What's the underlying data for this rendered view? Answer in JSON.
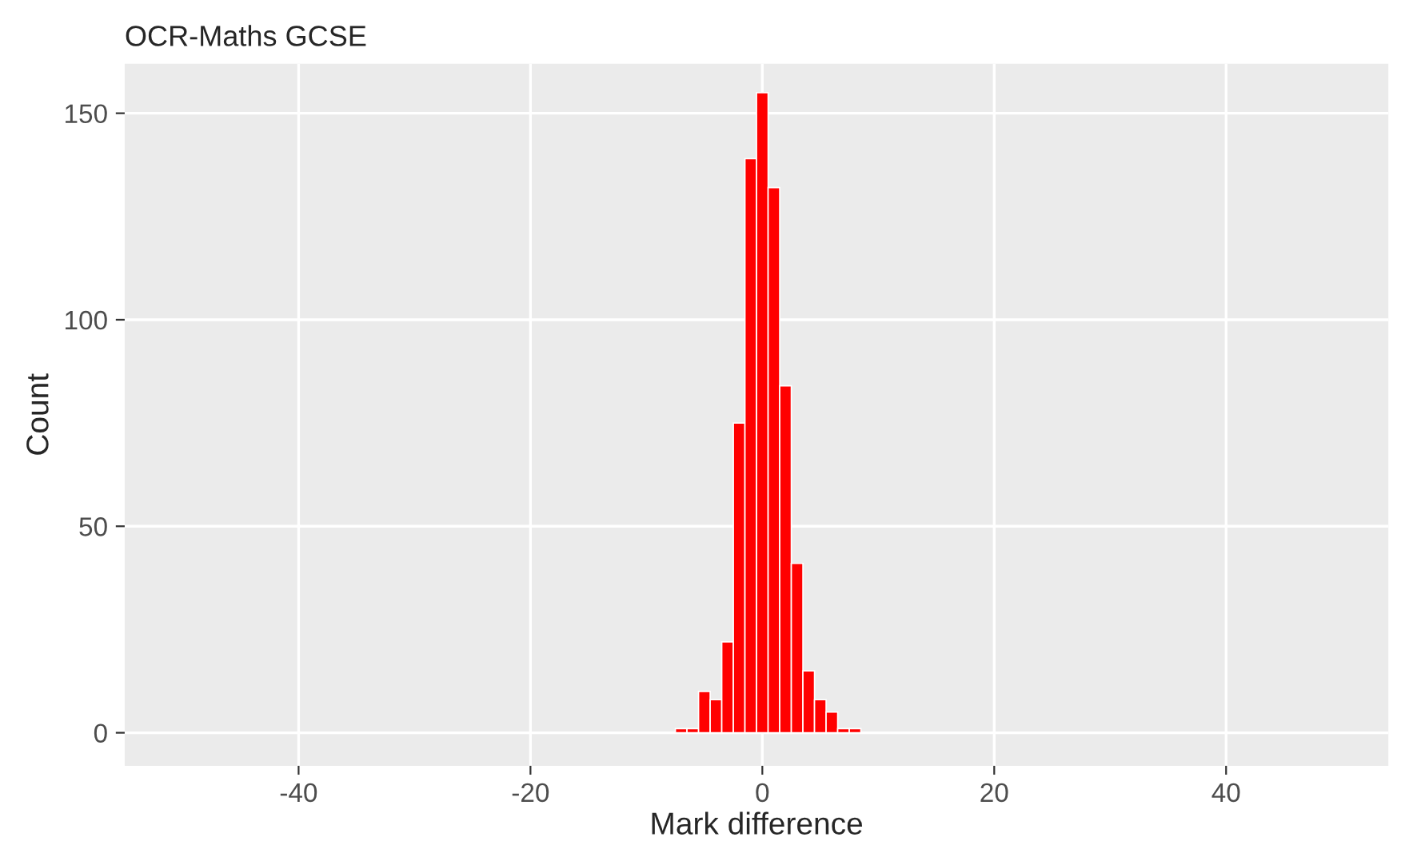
{
  "chart_data": {
    "type": "histogram",
    "title": "OCR-Maths GCSE",
    "xlabel": "Mark difference",
    "ylabel": "Count",
    "bins": [
      -7.5,
      -6.5,
      -5.5,
      -4.5,
      -3.5,
      -2.5,
      -1.5,
      -0.5,
      0.5,
      1.5,
      2.5,
      3.5,
      4.5,
      5.5,
      6.5,
      7.5,
      8.5
    ],
    "values": [
      1,
      1,
      10,
      8,
      22,
      75,
      139,
      155,
      132,
      84,
      41,
      15,
      8,
      5,
      1,
      1
    ],
    "color": "#ff0000",
    "xlim": [
      -55,
      54
    ],
    "xticks": [
      -40,
      -20,
      0,
      20,
      40
    ],
    "ylim": [
      -8,
      162
    ],
    "yticks": [
      0,
      50,
      100,
      150
    ],
    "grid": true,
    "legend": false
  }
}
